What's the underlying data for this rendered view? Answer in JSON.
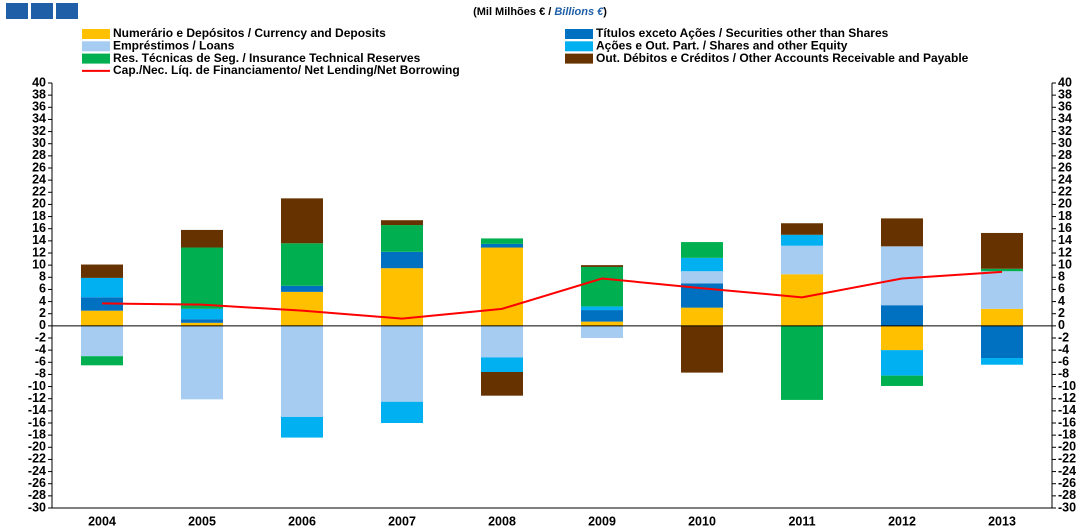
{
  "chart_data": {
    "type": "bar",
    "stacked": true,
    "title_parts": [
      "(Mil Milhões € / ",
      "Billions €",
      ")"
    ],
    "categories": [
      "2004",
      "2005",
      "2006",
      "2007",
      "2008",
      "2009",
      "2010",
      "2011",
      "2012",
      "2013"
    ],
    "series": [
      {
        "name": "Numerário e Depósitos / Currency and Deposits",
        "color": "#FFC000",
        "values": [
          2.5,
          0.5,
          5.6,
          9.5,
          12.9,
          0.7,
          3,
          8.5,
          -4,
          2.8
        ]
      },
      {
        "name": "Títulos exceto Ações / Securities other than Shares",
        "color": "#0070C0",
        "values": [
          2.2,
          0.6,
          1.0,
          2.7,
          0.6,
          1.9,
          4,
          0,
          3.4,
          -5.3
        ]
      },
      {
        "name": "Empréstimos / Loans",
        "color": "#A6CCF2",
        "values": [
          -5,
          -12.1,
          -15,
          -12.5,
          -5.2,
          -2,
          2,
          4.7,
          9.7,
          6.2
        ]
      },
      {
        "name": "Ações e Out. Part. / Shares and other Equity",
        "color": "#00B0F0",
        "values": [
          3.2,
          1.7,
          -3.4,
          -3.5,
          -2.4,
          0.6,
          2.2,
          1.8,
          -4.2,
          -1.1
        ]
      },
      {
        "name": "Res. Técnicas de Seg. / Insurance Technical Reserves",
        "color": "#00B050",
        "values": [
          -1.5,
          10.1,
          7.0,
          4.4,
          0.9,
          6.5,
          2.6,
          -12.2,
          -1.7,
          0.4
        ]
      },
      {
        "name": "Out. Débitos e Créditos / Other Accounts Receivable and Payable",
        "color": "#663300",
        "values": [
          2.2,
          2.9,
          7.4,
          0.8,
          -3.9,
          0.3,
          -7.7,
          1.9,
          4.6,
          5.9
        ]
      }
    ],
    "line": {
      "name": "Cap./Nec. Líq. de Financiamento/ Net Lending/Net Borrowing",
      "color": "#FF0000",
      "values": [
        3.7,
        3.5,
        2.5,
        1.2,
        2.8,
        7.8,
        6.2,
        4.7,
        7.8,
        8.9
      ]
    },
    "ylim": [
      -30,
      40
    ],
    "yticks": [
      -30,
      -28,
      -26,
      -24,
      -22,
      -20,
      -18,
      -16,
      -14,
      -12,
      -10,
      -8,
      -6,
      -4,
      -2,
      0,
      2,
      4,
      6,
      8,
      10,
      12,
      14,
      16,
      18,
      20,
      22,
      24,
      26,
      28,
      30,
      32,
      34,
      36,
      38,
      40
    ],
    "right_axis": true
  }
}
